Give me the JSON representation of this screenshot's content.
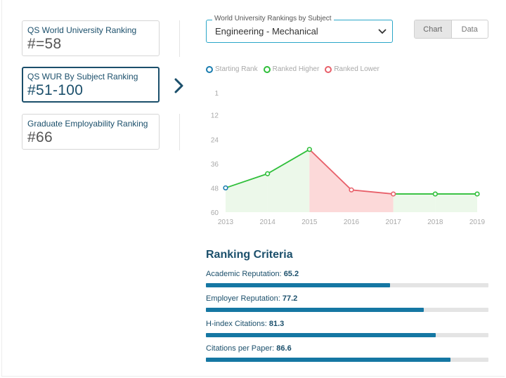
{
  "rankings": [
    {
      "label": "QS World University Ranking",
      "value": "#=58",
      "active": false
    },
    {
      "label": "QS WUR By Subject Ranking",
      "value": "#51-100",
      "active": true
    },
    {
      "label": "Graduate Employability Ranking",
      "value": "#66",
      "active": false
    }
  ],
  "subject_select": {
    "legend": "World University Rankings by Subject",
    "value": "Engineering - Mechanical"
  },
  "view_toggle": {
    "chart_label": "Chart",
    "data_label": "Data",
    "selected": "Chart"
  },
  "legend": [
    {
      "label": "Starting Rank",
      "color": "#1a7db0"
    },
    {
      "label": "Ranked Higher",
      "color": "#2fbf3a"
    },
    {
      "label": "Ranked Lower",
      "color": "#e8606a"
    }
  ],
  "colors": {
    "higher_fill": "#ecf8ea",
    "lower_fill": "#fcd9d9",
    "higher_line": "#2fbf3a",
    "lower_line": "#e8606a",
    "start": "#1a7db0"
  },
  "chart_data": {
    "type": "line",
    "title": "",
    "x": [
      "2013",
      "2014",
      "2015",
      "2016",
      "2017",
      "2018",
      "2019"
    ],
    "y_ticks": [
      1,
      12,
      24,
      36,
      48,
      60
    ],
    "ylim": [
      1,
      60
    ],
    "y_inverted": true,
    "series": [
      {
        "name": "Rank",
        "values": [
          48,
          41,
          29,
          49,
          51,
          51,
          51
        ]
      }
    ]
  },
  "criteria": {
    "title": "Ranking Criteria",
    "items": [
      {
        "label": "Academic Reputation:",
        "value": "65.2",
        "score": 65.2
      },
      {
        "label": "Employer Reputation:",
        "value": "77.2",
        "score": 77.2
      },
      {
        "label": "H-index Citations:",
        "value": "81.3",
        "score": 81.3
      },
      {
        "label": "Citations per Paper:",
        "value": "86.6",
        "score": 86.6
      }
    ]
  }
}
